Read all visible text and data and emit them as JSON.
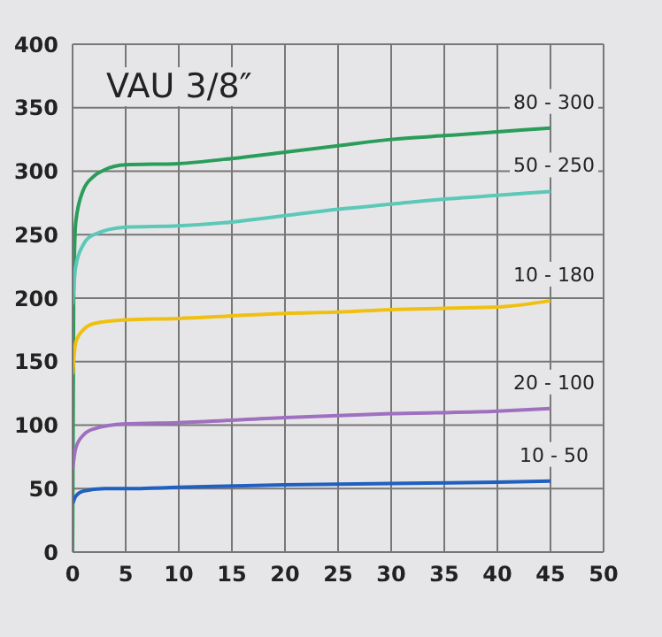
{
  "chart_data": {
    "type": "line",
    "title": "VAU 3/8″",
    "xlim": [
      0,
      50
    ],
    "xticks": [
      0,
      5,
      10,
      15,
      20,
      25,
      30,
      35,
      40,
      45,
      50
    ],
    "ylim": [
      0,
      400
    ],
    "yticks": [
      0,
      50,
      100,
      150,
      200,
      250,
      300,
      350,
      400
    ],
    "grid": true,
    "series": [
      {
        "name": "80 - 300",
        "color": "#2a9d5a",
        "x": [
          0,
          0.1,
          0.3,
          1,
          2,
          3,
          5,
          10,
          15,
          20,
          25,
          30,
          35,
          40,
          45
        ],
        "values": [
          0,
          200,
          260,
          285,
          296,
          301,
          305,
          306,
          310,
          315,
          320,
          325,
          328,
          331,
          334
        ]
      },
      {
        "name": "50 - 250",
        "color": "#5cc8b8",
        "x": [
          0,
          0.3,
          1,
          2,
          5,
          10,
          15,
          20,
          25,
          30,
          35,
          40,
          45
        ],
        "values": [
          195,
          225,
          242,
          250,
          256,
          257,
          260,
          265,
          270,
          274,
          278,
          281,
          284
        ]
      },
      {
        "name": "10 - 180",
        "color": "#f0c010",
        "x": [
          0,
          0.3,
          1,
          2,
          5,
          10,
          15,
          20,
          25,
          30,
          35,
          40,
          45
        ],
        "values": [
          140,
          165,
          175,
          180,
          183,
          184,
          186,
          188,
          189,
          191,
          192,
          193,
          198
        ]
      },
      {
        "name": "20 - 100",
        "color": "#a070c0",
        "x": [
          0,
          0.3,
          1,
          2,
          5,
          10,
          20,
          30,
          40,
          45
        ],
        "values": [
          65,
          82,
          92,
          97,
          101,
          102,
          106,
          109,
          111,
          113
        ]
      },
      {
        "name": "10 - 50",
        "color": "#2060c0",
        "x": [
          0,
          0.3,
          1,
          3,
          5,
          10,
          20,
          30,
          40,
          45
        ],
        "values": [
          38,
          44,
          48,
          50,
          50,
          51,
          53,
          54,
          55,
          56
        ]
      }
    ]
  }
}
